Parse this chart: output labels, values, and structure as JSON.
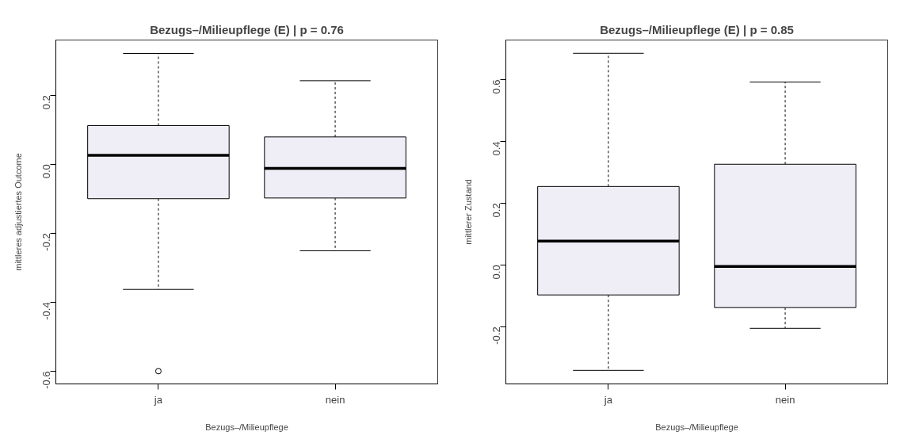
{
  "chart_data": [
    {
      "type": "box",
      "title": "Bezugs–/Milieupflege (E) | p = 0.76",
      "xlabel": "Bezugs–/Milieupflege",
      "ylabel": "mittleres adjustiertes Outcome",
      "categories": [
        "ja",
        "nein"
      ],
      "ylim": [
        -0.637,
        0.36
      ],
      "yticks": [
        0.2,
        {
          "value": 0,
          "label": "0.0"
        },
        -0.2,
        -0.4,
        -0.6
      ],
      "grid": false,
      "series": [
        {
          "color": "#efedf5",
          "boxes": [
            {
              "low": -0.363,
              "q1": -0.1,
              "median": 0.026,
              "q3": 0.112,
              "high": 0.321,
              "outliers": [
                -0.6
              ]
            },
            {
              "low": -0.251,
              "q1": -0.098,
              "median": -0.012,
              "q3": 0.079,
              "high": 0.242
            }
          ]
        }
      ]
    },
    {
      "type": "box",
      "title": "Bezugs–/Milieupflege (E) | p = 0.85",
      "xlabel": "Bezugs–/Milieupflege",
      "ylabel": "mittlerer Zustand",
      "categories": [
        "ja",
        "nein"
      ],
      "ylim": [
        -0.385,
        0.728
      ],
      "yticks": [
        0.6,
        0.4,
        0.2,
        {
          "value": 0,
          "label": "0.0"
        },
        -0.2
      ],
      "grid": false,
      "series": [
        {
          "color": "#efedf5",
          "boxes": [
            {
              "low": -0.341,
              "q1": -0.097,
              "median": 0.077,
              "q3": 0.254,
              "high": 0.685
            },
            {
              "low": -0.205,
              "q1": -0.138,
              "median": -0.005,
              "q3": 0.326,
              "high": 0.592
            }
          ]
        }
      ]
    }
  ]
}
